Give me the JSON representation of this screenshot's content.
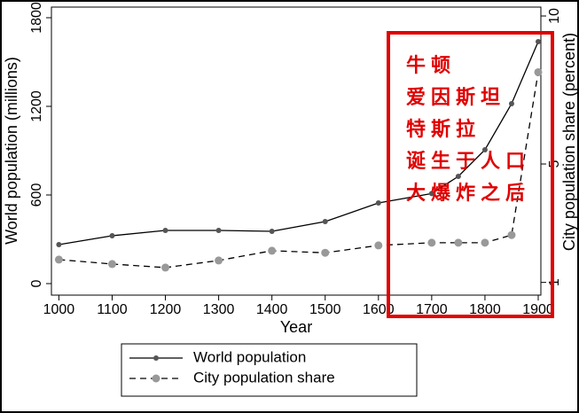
{
  "chart_data": {
    "type": "line",
    "x_label": "Year",
    "y_label": "World population (millions)",
    "y2_label": "City population share (percent)",
    "x": [
      1000,
      1100,
      1200,
      1300,
      1400,
      1500,
      1600,
      1700,
      1750,
      1800,
      1850,
      1900
    ],
    "series": [
      {
        "name": "World population",
        "color": "#000000",
        "marker_color": "#555555",
        "dash": "solid",
        "values": [
          264,
          324,
          360,
          360,
          354,
          420,
          546,
          610,
          726,
          906,
          1218,
          1638
        ]
      },
      {
        "name": "City population share",
        "color": "#000000",
        "marker_color": "#999999",
        "dash": "dashed",
        "axis": "y2",
        "values": [
          1.77,
          1.62,
          1.5,
          1.74,
          2.07,
          2.0,
          2.25,
          2.34,
          2.34,
          2.34,
          2.6,
          8.1
        ]
      }
    ],
    "xlim": [
      986,
      1905
    ],
    "xticks": [
      1000,
      1100,
      1200,
      1300,
      1400,
      1500,
      1600,
      1700,
      1800,
      1900
    ],
    "ylim": [
      -78,
      1872
    ],
    "yticks": [
      0,
      600,
      1200,
      1800
    ],
    "y2lim": [
      0.57,
      10.3
    ],
    "y2ticks": [
      1,
      5,
      10
    ],
    "annotation_lines": [
      "牛顿",
      "爱因斯坦",
      "特斯拉",
      "诞生于人口",
      "大爆炸之后"
    ],
    "annotation_color": "#e00000",
    "legend": "bottom"
  }
}
